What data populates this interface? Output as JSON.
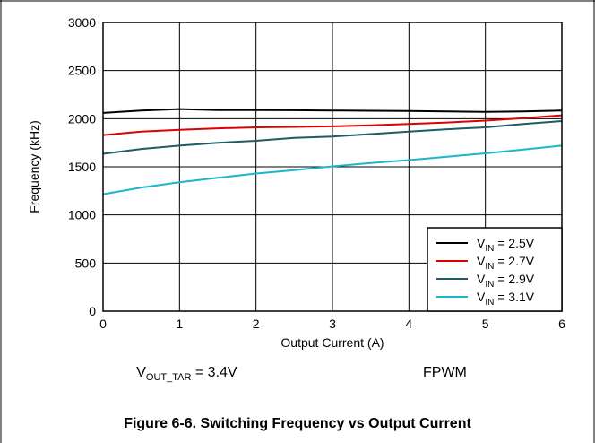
{
  "chart_data": {
    "type": "line",
    "xlabel": "Output Current (A)",
    "ylabel": "Frequency (kHz)",
    "xlim": [
      0,
      6
    ],
    "ylim": [
      0,
      3000
    ],
    "x_ticks": [
      "0",
      "1",
      "2",
      "3",
      "4",
      "5",
      "6"
    ],
    "y_ticks": [
      "0",
      "500",
      "1000",
      "1500",
      "2000",
      "2500",
      "3000"
    ],
    "grid": true,
    "legend_position": "bottom-right",
    "series": [
      {
        "name": "V",
        "sub": "IN",
        "suffix": " = 2.5V",
        "color": "#000000",
        "x": [
          0,
          0.5,
          1,
          1.5,
          2,
          2.5,
          3,
          3.5,
          4,
          4.5,
          5,
          5.5,
          6
        ],
        "y": [
          2060,
          2085,
          2100,
          2090,
          2090,
          2088,
          2085,
          2082,
          2080,
          2075,
          2070,
          2075,
          2085
        ]
      },
      {
        "name": "V",
        "sub": "IN",
        "suffix": " = 2.7V",
        "color": "#e00000",
        "x": [
          0,
          0.5,
          1,
          1.5,
          2,
          2.5,
          3,
          3.5,
          4,
          4.5,
          5,
          5.5,
          6
        ],
        "y": [
          1830,
          1865,
          1885,
          1900,
          1910,
          1915,
          1920,
          1930,
          1945,
          1960,
          1980,
          2005,
          2035
        ]
      },
      {
        "name": "V",
        "sub": "IN",
        "suffix": " = 2.9V",
        "color": "#1f5c63",
        "x": [
          0,
          0.5,
          1,
          1.5,
          2,
          2.5,
          3,
          3.5,
          4,
          4.5,
          5,
          5.5,
          6
        ],
        "y": [
          1635,
          1685,
          1720,
          1750,
          1770,
          1800,
          1815,
          1840,
          1865,
          1890,
          1910,
          1945,
          1975
        ]
      },
      {
        "name": "V",
        "sub": "IN",
        "suffix": " = 3.1V",
        "color": "#1cb5c9",
        "x": [
          0,
          0.5,
          1,
          1.5,
          2,
          2.5,
          3,
          3.5,
          4,
          4.5,
          5,
          5.5,
          6
        ],
        "y": [
          1215,
          1285,
          1340,
          1385,
          1430,
          1465,
          1505,
          1540,
          1570,
          1605,
          1640,
          1680,
          1720
        ]
      }
    ],
    "annotations": [
      {
        "main": "V",
        "sub": "OUT_TAR",
        "rest": " = 3.4V"
      },
      {
        "text": "FPWM"
      }
    ]
  },
  "caption": "Figure 6-6. Switching Frequency vs Output Current"
}
